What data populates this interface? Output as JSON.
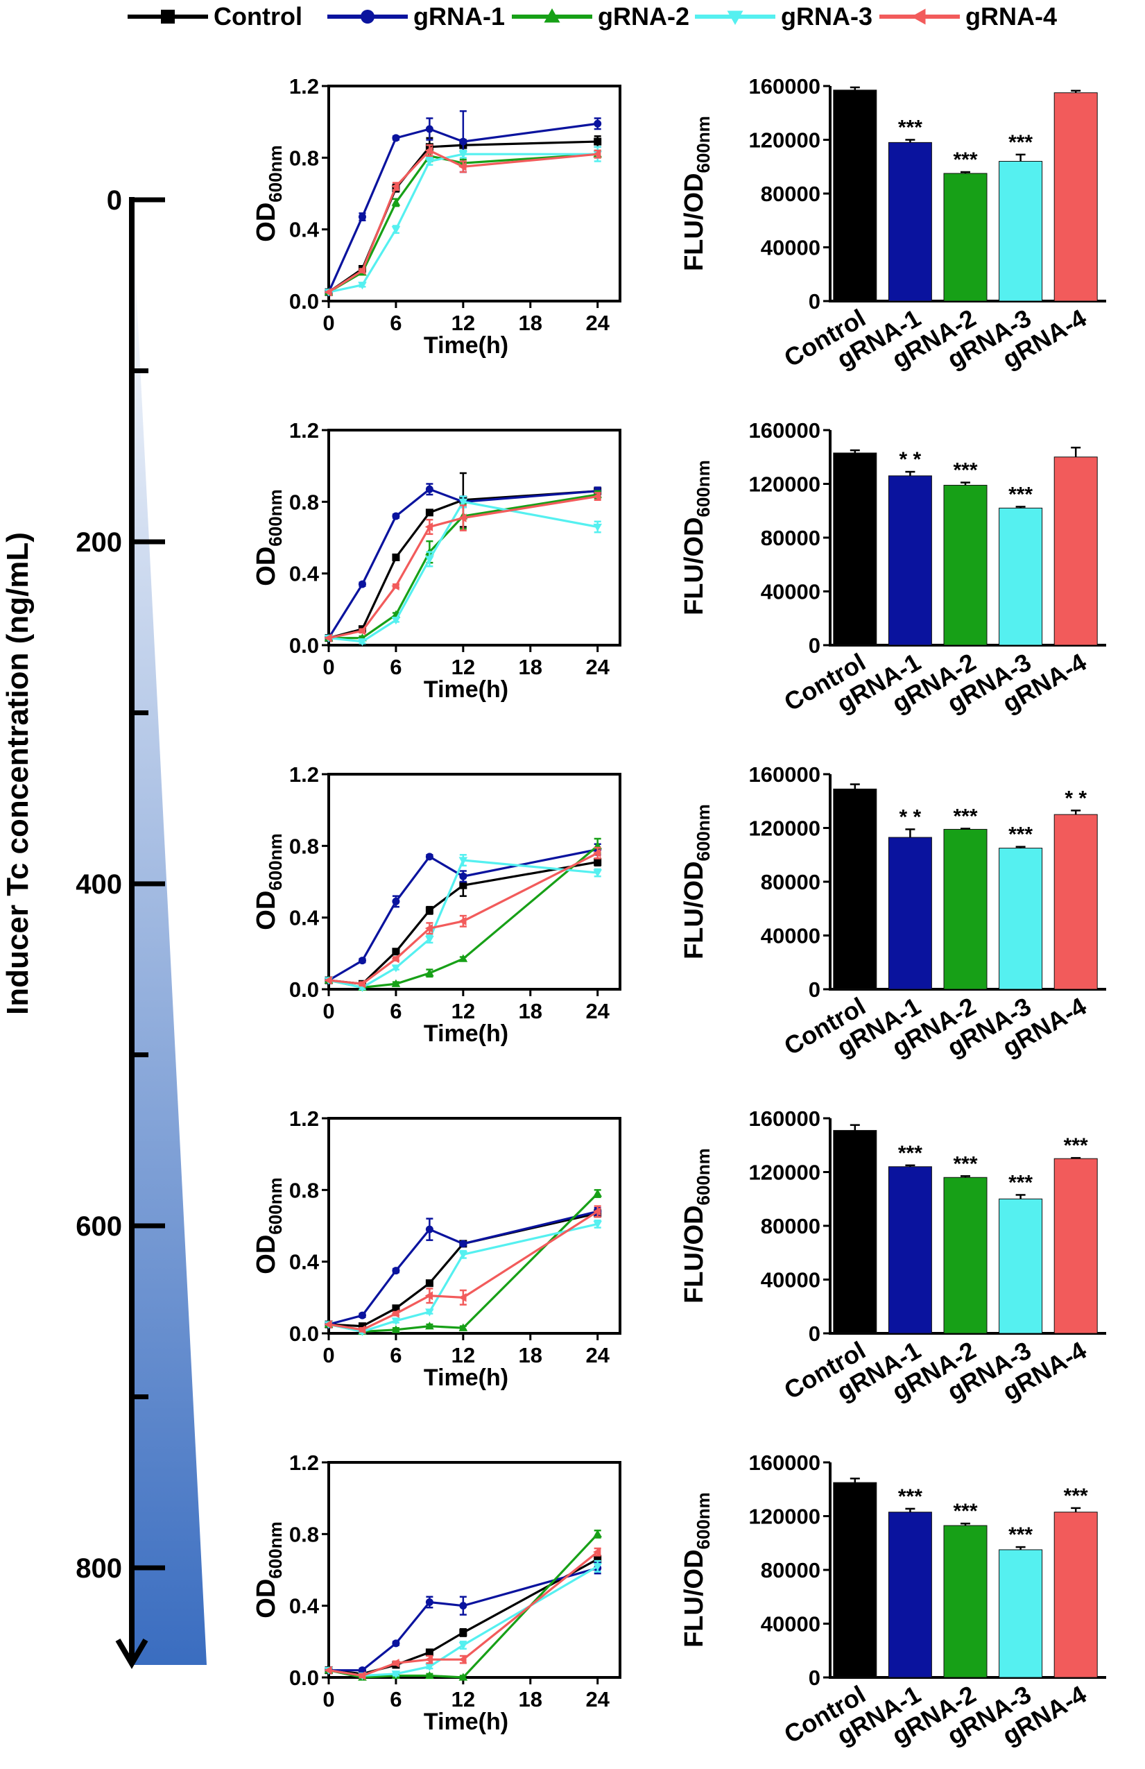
{
  "colors": {
    "Control": "#000000",
    "gRNA-1": "#0a139e",
    "gRNA-2": "#17a017",
    "gRNA-3": "#55f0f0",
    "gRNA-4": "#f25b5b"
  },
  "legend": {
    "items": [
      {
        "name": "Control",
        "marker": "square"
      },
      {
        "name": "gRNA-1",
        "marker": "circle"
      },
      {
        "name": "gRNA-2",
        "marker": "triangle-up"
      },
      {
        "name": "gRNA-3",
        "marker": "triangle-down"
      },
      {
        "name": "gRNA-4",
        "marker": "triangle-left"
      }
    ]
  },
  "inducer_axis": {
    "label": "Inducer Tc concentration (ng/mL)",
    "ticks": [
      "0",
      "200",
      "400",
      "600",
      "800"
    ]
  },
  "chart_data": [
    {
      "type": "line",
      "panel": "growth-0",
      "ylabel_main": "OD",
      "ylabel_sub": "600nm",
      "xlabel": "Time(h)",
      "x": [
        0,
        3,
        6,
        9,
        12,
        24
      ],
      "xlim": [
        0,
        26
      ],
      "ylim": [
        0,
        1.2
      ],
      "xticks": [
        0,
        6,
        12,
        18,
        24
      ],
      "yticks": [
        "0.0",
        "0.4",
        "0.8",
        "1.2"
      ],
      "series": [
        {
          "name": "Control",
          "values": [
            0.05,
            0.18,
            0.63,
            0.86,
            0.87,
            0.89
          ],
          "err": [
            0,
            0.01,
            0.02,
            0.05,
            0.03,
            0.03
          ]
        },
        {
          "name": "gRNA-1",
          "values": [
            0.05,
            0.47,
            0.91,
            0.96,
            0.89,
            0.99
          ],
          "err": [
            0,
            0.02,
            0.01,
            0.06,
            0.17,
            0.03
          ]
        },
        {
          "name": "gRNA-2",
          "values": [
            0.05,
            0.16,
            0.55,
            0.81,
            0.77,
            0.82
          ],
          "err": [
            0,
            0.01,
            0.02,
            0.03,
            0.02,
            0.02
          ]
        },
        {
          "name": "gRNA-3",
          "values": [
            0.05,
            0.09,
            0.4,
            0.78,
            0.82,
            0.82
          ],
          "err": [
            0,
            0.01,
            0.02,
            0.02,
            0.02,
            0.04
          ]
        },
        {
          "name": "gRNA-4",
          "values": [
            0.05,
            0.17,
            0.64,
            0.84,
            0.75,
            0.82
          ],
          "err": [
            0,
            0.01,
            0.02,
            0.03,
            0.03,
            0.02
          ]
        }
      ]
    },
    {
      "type": "bar",
      "panel": "flu-0",
      "ylabel_main": "FLU/OD",
      "ylabel_sub": "600nm",
      "categories": [
        "Control",
        "gRNA-1",
        "gRNA-2",
        "gRNA-3",
        "gRNA-4"
      ],
      "values": [
        157000,
        118000,
        95000,
        104000,
        155000
      ],
      "err": [
        2000,
        2000,
        1000,
        5000,
        1500
      ],
      "significance": [
        "",
        "***",
        "***",
        "***",
        ""
      ],
      "ylim": [
        0,
        160000
      ],
      "yticks": [
        "0",
        "40000",
        "80000",
        "120000",
        "160000"
      ]
    },
    {
      "type": "line",
      "panel": "growth-200",
      "ylabel_main": "OD",
      "ylabel_sub": "600nm",
      "xlabel": "Time(h)",
      "x": [
        0,
        3,
        6,
        9,
        12,
        24
      ],
      "xlim": [
        0,
        26
      ],
      "ylim": [
        0,
        1.2
      ],
      "xticks": [
        0,
        6,
        12,
        18,
        24
      ],
      "yticks": [
        "0.0",
        "0.4",
        "0.8",
        "1.2"
      ],
      "series": [
        {
          "name": "Control",
          "values": [
            0.04,
            0.09,
            0.49,
            0.74,
            0.81,
            0.86
          ],
          "err": [
            0,
            0.01,
            0.01,
            0.01,
            0.15,
            0.02
          ]
        },
        {
          "name": "gRNA-1",
          "values": [
            0.04,
            0.34,
            0.72,
            0.87,
            0.8,
            0.86
          ],
          "err": [
            0,
            0.01,
            0.01,
            0.03,
            0.03,
            0.02
          ]
        },
        {
          "name": "gRNA-2",
          "values": [
            0.04,
            0.04,
            0.17,
            0.52,
            0.72,
            0.84
          ],
          "err": [
            0,
            0.01,
            0.01,
            0.06,
            0.07,
            0.02
          ]
        },
        {
          "name": "gRNA-3",
          "values": [
            0.04,
            0.02,
            0.14,
            0.48,
            0.8,
            0.66
          ],
          "err": [
            0,
            0.01,
            0.01,
            0.04,
            0.03,
            0.03
          ]
        },
        {
          "name": "gRNA-4",
          "values": [
            0.04,
            0.08,
            0.33,
            0.66,
            0.71,
            0.83
          ],
          "err": [
            0,
            0.01,
            0.01,
            0.04,
            0.07,
            0.02
          ]
        }
      ]
    },
    {
      "type": "bar",
      "panel": "flu-200",
      "ylabel_main": "FLU/OD",
      "ylabel_sub": "600nm",
      "categories": [
        "Control",
        "gRNA-1",
        "gRNA-2",
        "gRNA-3",
        "gRNA-4"
      ],
      "values": [
        143000,
        126000,
        119000,
        102000,
        140000
      ],
      "err": [
        2000,
        3000,
        2000,
        1000,
        7000
      ],
      "significance": [
        "",
        "* *",
        "***",
        "***",
        ""
      ],
      "ylim": [
        0,
        160000
      ],
      "yticks": [
        "0",
        "40000",
        "80000",
        "120000",
        "160000"
      ]
    },
    {
      "type": "line",
      "panel": "growth-400",
      "ylabel_main": "OD",
      "ylabel_sub": "600nm",
      "xlabel": "Time(h)",
      "x": [
        0,
        3,
        6,
        9,
        12,
        24
      ],
      "xlim": [
        0,
        26
      ],
      "ylim": [
        0,
        1.2
      ],
      "xticks": [
        0,
        6,
        12,
        18,
        24
      ],
      "yticks": [
        "0.0",
        "0.4",
        "0.8",
        "1.2"
      ],
      "series": [
        {
          "name": "Control",
          "values": [
            0.05,
            0.03,
            0.21,
            0.44,
            0.58,
            0.71
          ],
          "err": [
            0,
            0.01,
            0.01,
            0.02,
            0.06,
            0.02
          ]
        },
        {
          "name": "gRNA-1",
          "values": [
            0.05,
            0.16,
            0.49,
            0.74,
            0.63,
            0.78
          ],
          "err": [
            0,
            0.01,
            0.03,
            0.01,
            0.03,
            0.03
          ]
        },
        {
          "name": "gRNA-2",
          "values": [
            0.05,
            0.01,
            0.03,
            0.09,
            0.17,
            0.8
          ],
          "err": [
            0,
            0.01,
            0.01,
            0.02,
            0.01,
            0.04
          ]
        },
        {
          "name": "gRNA-3",
          "values": [
            0.05,
            0.01,
            0.12,
            0.28,
            0.72,
            0.65
          ],
          "err": [
            0,
            0.01,
            0.01,
            0.02,
            0.03,
            0.02
          ]
        },
        {
          "name": "gRNA-4",
          "values": [
            0.05,
            0.03,
            0.17,
            0.34,
            0.38,
            0.76
          ],
          "err": [
            0,
            0.01,
            0.01,
            0.03,
            0.03,
            0.03
          ]
        }
      ]
    },
    {
      "type": "bar",
      "panel": "flu-400",
      "ylabel_main": "FLU/OD",
      "ylabel_sub": "600nm",
      "categories": [
        "Control",
        "gRNA-1",
        "gRNA-2",
        "gRNA-3",
        "gRNA-4"
      ],
      "values": [
        149000,
        113000,
        119000,
        105000,
        130000
      ],
      "err": [
        3500,
        6000,
        500,
        1000,
        3000
      ],
      "significance": [
        "",
        "* *",
        "***",
        "***",
        "* *"
      ],
      "ylim": [
        0,
        160000
      ],
      "yticks": [
        "0",
        "40000",
        "80000",
        "120000",
        "160000"
      ]
    },
    {
      "type": "line",
      "panel": "growth-600",
      "ylabel_main": "OD",
      "ylabel_sub": "600nm",
      "xlabel": "Time(h)",
      "x": [
        0,
        3,
        6,
        9,
        12,
        24
      ],
      "xlim": [
        0,
        26
      ],
      "ylim": [
        0,
        1.2
      ],
      "xticks": [
        0,
        6,
        12,
        18,
        24
      ],
      "yticks": [
        "0.0",
        "0.4",
        "0.8",
        "1.2"
      ],
      "series": [
        {
          "name": "Control",
          "values": [
            0.05,
            0.04,
            0.14,
            0.28,
            0.5,
            0.67
          ],
          "err": [
            0,
            0.01,
            0.01,
            0.01,
            0.01,
            0.02
          ]
        },
        {
          "name": "gRNA-1",
          "values": [
            0.05,
            0.1,
            0.35,
            0.58,
            0.5,
            0.68
          ],
          "err": [
            0,
            0.01,
            0.01,
            0.06,
            0.01,
            0.02
          ]
        },
        {
          "name": "gRNA-2",
          "values": [
            0.05,
            0.01,
            0.02,
            0.04,
            0.03,
            0.78
          ],
          "err": [
            0,
            0.01,
            0.01,
            0.01,
            0.01,
            0.02
          ]
        },
        {
          "name": "gRNA-3",
          "values": [
            0.05,
            0.01,
            0.07,
            0.12,
            0.44,
            0.61
          ],
          "err": [
            0,
            0.01,
            0.01,
            0.01,
            0.02,
            0.02
          ]
        },
        {
          "name": "gRNA-4",
          "values": [
            0.05,
            0.02,
            0.11,
            0.21,
            0.2,
            0.68
          ],
          "err": [
            0,
            0.01,
            0.01,
            0.04,
            0.04,
            0.03
          ]
        }
      ]
    },
    {
      "type": "bar",
      "panel": "flu-600",
      "ylabel_main": "FLU/OD",
      "ylabel_sub": "600nm",
      "categories": [
        "Control",
        "gRNA-1",
        "gRNA-2",
        "gRNA-3",
        "gRNA-4"
      ],
      "values": [
        151000,
        124000,
        116000,
        100000,
        130000
      ],
      "err": [
        4000,
        1000,
        1000,
        3000,
        500
      ],
      "significance": [
        "",
        "***",
        "***",
        "***",
        "***"
      ],
      "ylim": [
        0,
        160000
      ],
      "yticks": [
        "0",
        "40000",
        "80000",
        "120000",
        "160000"
      ]
    },
    {
      "type": "line",
      "panel": "growth-800",
      "ylabel_main": "OD",
      "ylabel_sub": "600nm",
      "xlabel": "Time(h)",
      "x": [
        0,
        3,
        6,
        9,
        12,
        24
      ],
      "xlim": [
        0,
        26
      ],
      "ylim": [
        0,
        1.2
      ],
      "xticks": [
        0,
        6,
        12,
        18,
        24
      ],
      "yticks": [
        "0.0",
        "0.4",
        "0.8",
        "1.2"
      ],
      "series": [
        {
          "name": "Control",
          "values": [
            0.04,
            0.02,
            0.07,
            0.14,
            0.25,
            0.66
          ],
          "err": [
            0,
            0.01,
            0.01,
            0.01,
            0.02,
            0.02
          ]
        },
        {
          "name": "gRNA-1",
          "values": [
            0.04,
            0.04,
            0.19,
            0.42,
            0.4,
            0.61
          ],
          "err": [
            0,
            0.01,
            0.01,
            0.03,
            0.05,
            0.03
          ]
        },
        {
          "name": "gRNA-2",
          "values": [
            0.04,
            0.0,
            0.01,
            0.01,
            0.0,
            0.8
          ],
          "err": [
            0,
            0.01,
            0.01,
            0.01,
            0.01,
            0.02
          ]
        },
        {
          "name": "gRNA-3",
          "values": [
            0.04,
            0.01,
            0.02,
            0.06,
            0.18,
            0.62
          ],
          "err": [
            0,
            0.01,
            0.01,
            0.01,
            0.02,
            0.03
          ]
        },
        {
          "name": "gRNA-4",
          "values": [
            0.04,
            0.01,
            0.08,
            0.1,
            0.1,
            0.7
          ],
          "err": [
            0,
            0.01,
            0.01,
            0.02,
            0.02,
            0.02
          ]
        }
      ]
    },
    {
      "type": "bar",
      "panel": "flu-800",
      "ylabel_main": "FLU/OD",
      "ylabel_sub": "600nm",
      "categories": [
        "Control",
        "gRNA-1",
        "gRNA-2",
        "gRNA-3",
        "gRNA-4"
      ],
      "values": [
        145000,
        123000,
        113000,
        95000,
        123000
      ],
      "err": [
        3000,
        2500,
        1500,
        2000,
        3000
      ],
      "significance": [
        "",
        "***",
        "***",
        "***",
        "***"
      ],
      "ylim": [
        0,
        160000
      ],
      "yticks": [
        "0",
        "40000",
        "80000",
        "120000",
        "160000"
      ]
    }
  ]
}
